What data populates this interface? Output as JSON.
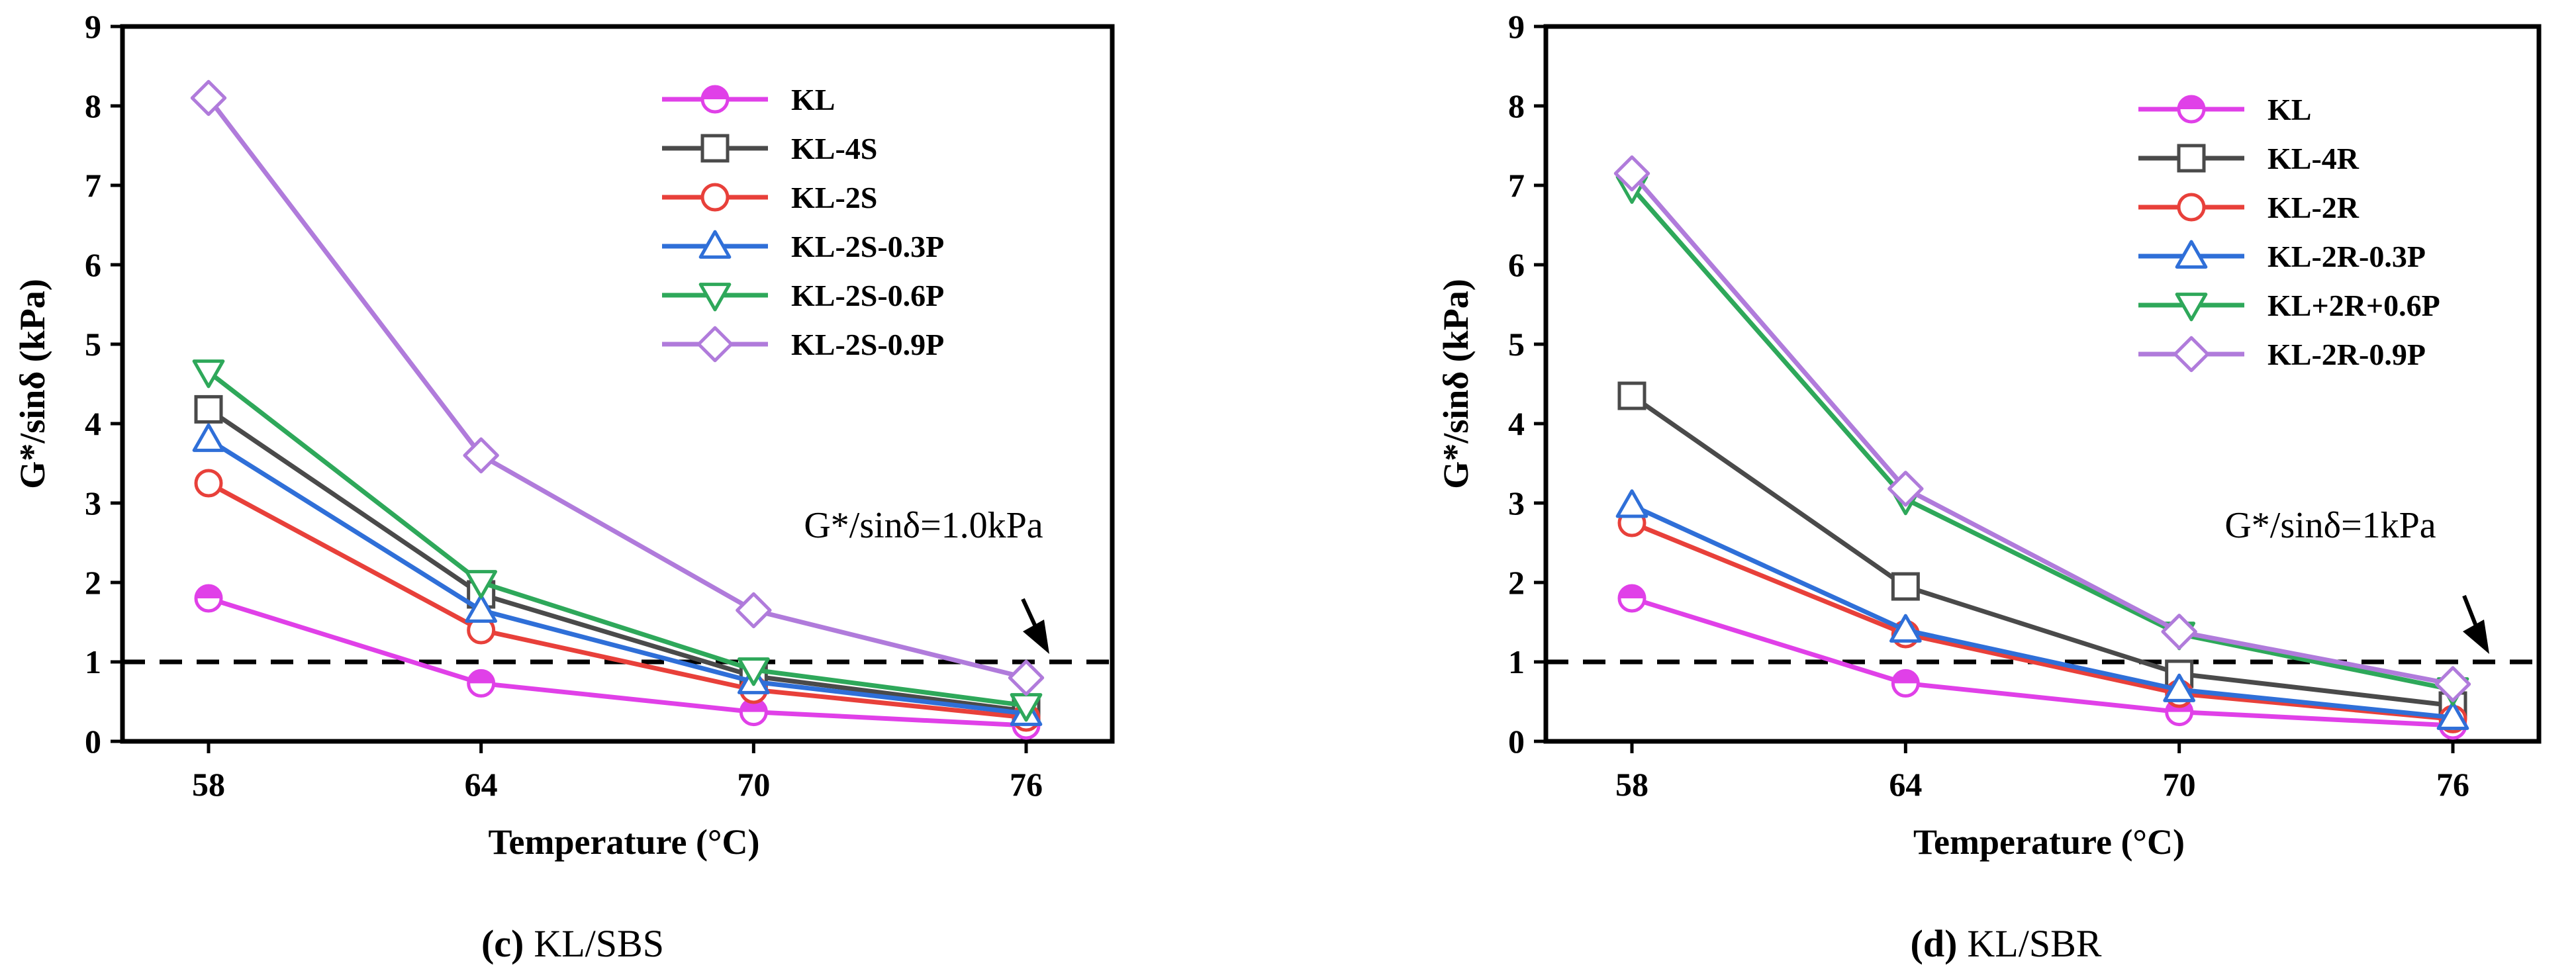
{
  "chart_data": [
    {
      "type": "line",
      "caption_letter": "(c)",
      "caption_text": "KL/SBS",
      "xlabel": "Temperature (°C)",
      "ylabel": "G*/sinδ (kPa)",
      "categories": [
        "58",
        "64",
        "70",
        "76"
      ],
      "ylim": [
        0,
        9
      ],
      "yticks": [
        "0",
        "1",
        "2",
        "3",
        "4",
        "5",
        "6",
        "7",
        "8",
        "9"
      ],
      "reference_line": {
        "y": 1.0,
        "style": "dashed"
      },
      "annotation": "G*/sinδ=1.0kPa",
      "legend_position": "top-right",
      "series": [
        {
          "name": "KL",
          "marker": "circle-half",
          "color": "#E040E8",
          "values": [
            1.8,
            0.73,
            0.37,
            0.2
          ]
        },
        {
          "name": "KL-4S",
          "marker": "square",
          "color": "#4A4A4A",
          "values": [
            4.18,
            1.85,
            0.82,
            0.38
          ]
        },
        {
          "name": "KL-2S",
          "marker": "circle",
          "color": "#E8403A",
          "values": [
            3.25,
            1.4,
            0.65,
            0.3
          ]
        },
        {
          "name": "KL-2S-0.3P",
          "marker": "triangle-up",
          "color": "#2F6FD8",
          "values": [
            3.8,
            1.65,
            0.75,
            0.35
          ]
        },
        {
          "name": "KL-2S-0.6P",
          "marker": "triangle-down",
          "color": "#2EA85A",
          "values": [
            4.65,
            2.0,
            0.9,
            0.45
          ]
        },
        {
          "name": "KL-2S-0.9P",
          "marker": "diamond",
          "color": "#B07BDB",
          "values": [
            8.1,
            3.6,
            1.65,
            0.8
          ]
        }
      ]
    },
    {
      "type": "line",
      "caption_letter": "(d)",
      "caption_text": "KL/SBR",
      "xlabel": "Temperature (°C)",
      "ylabel": "G*/sinδ (kPa)",
      "categories": [
        "58",
        "64",
        "70",
        "76"
      ],
      "ylim": [
        0,
        9
      ],
      "yticks": [
        "0",
        "1",
        "2",
        "3",
        "4",
        "5",
        "6",
        "7",
        "8",
        "9"
      ],
      "reference_line": {
        "y": 1.0,
        "style": "dashed"
      },
      "annotation": "G*/sinδ=1kPa",
      "legend_position": "top-right",
      "series": [
        {
          "name": "KL",
          "marker": "circle-half",
          "color": "#E040E8",
          "values": [
            1.8,
            0.73,
            0.37,
            0.2
          ]
        },
        {
          "name": "KL-4R",
          "marker": "square",
          "color": "#4A4A4A",
          "values": [
            4.35,
            1.95,
            0.85,
            0.45
          ]
        },
        {
          "name": "KL-2R",
          "marker": "circle",
          "color": "#E8403A",
          "values": [
            2.75,
            1.35,
            0.6,
            0.28
          ]
        },
        {
          "name": "KL-2R-0.3P",
          "marker": "triangle-up",
          "color": "#2F6FD8",
          "values": [
            2.97,
            1.4,
            0.65,
            0.3
          ]
        },
        {
          "name": "KL+2R+0.6P",
          "marker": "triangle-down",
          "color": "#2EA85A",
          "values": [
            6.97,
            3.05,
            1.35,
            0.65
          ]
        },
        {
          "name": "KL-2R-0.9P",
          "marker": "diamond",
          "color": "#B07BDB",
          "values": [
            7.15,
            3.18,
            1.38,
            0.72
          ]
        }
      ]
    }
  ]
}
